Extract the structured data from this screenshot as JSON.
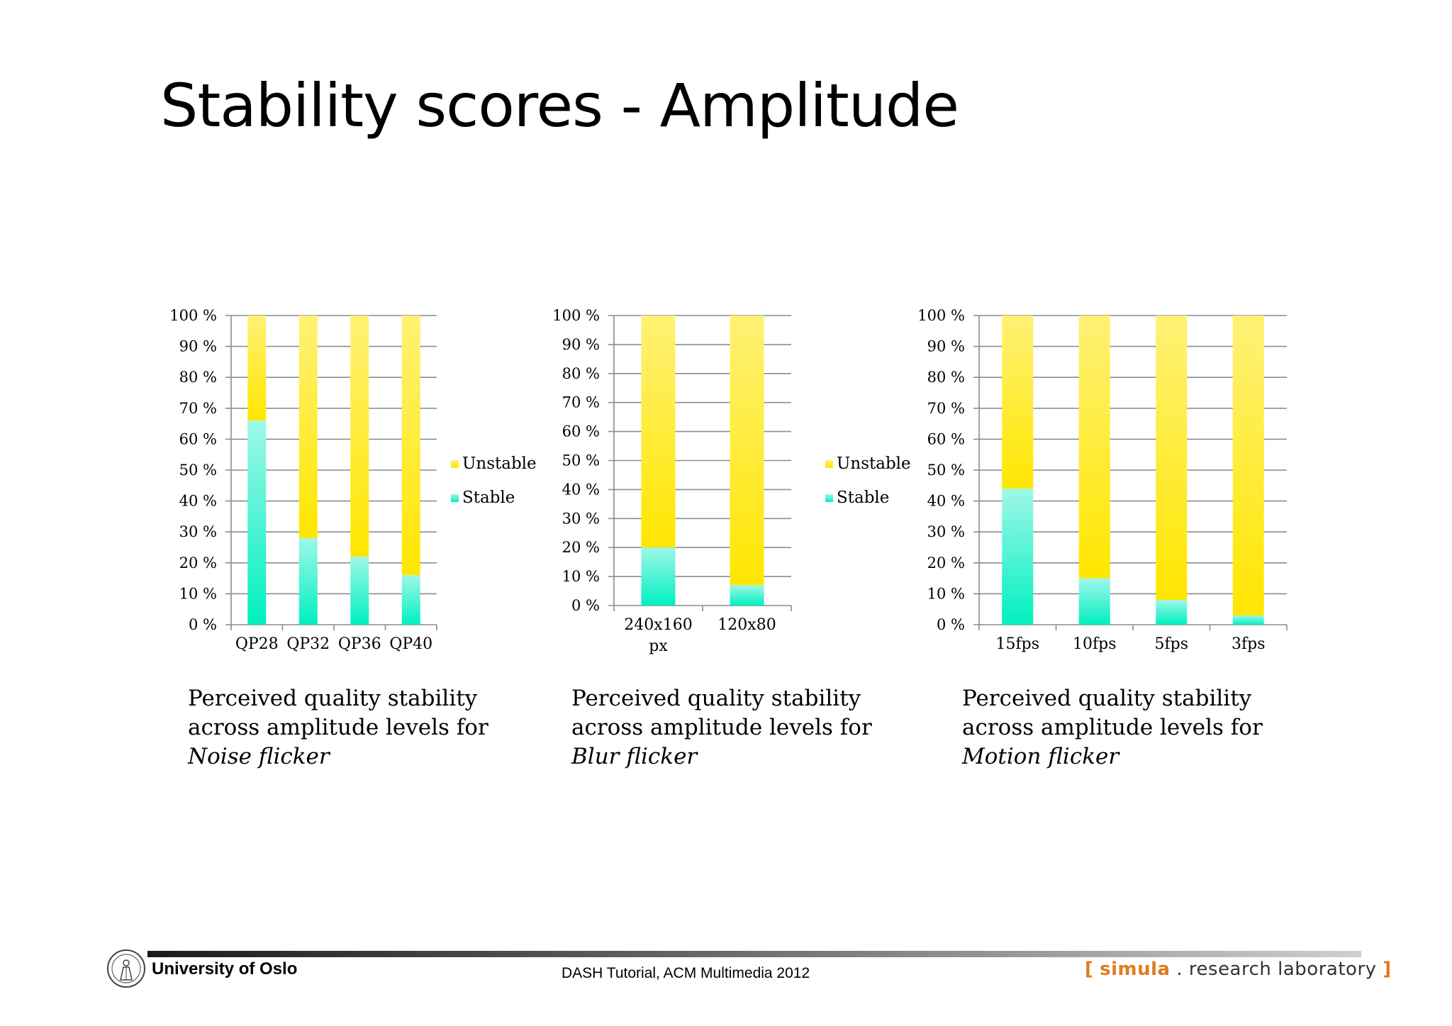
{
  "slide": {
    "title": "Stability scores - Amplitude"
  },
  "colors": {
    "unstable_top": "#FFF176",
    "unstable_bottom": "#FFE600",
    "stable_top": "#9FF7E8",
    "stable_bottom": "#00F0C0",
    "grid": "#8c8c8c"
  },
  "chart_data": [
    {
      "type": "bar",
      "stacked": true,
      "percent": true,
      "categories": [
        "QP28",
        "QP32",
        "QP36",
        "QP40"
      ],
      "series": [
        {
          "name": "Stable",
          "values": [
            66,
            28,
            22,
            16
          ]
        },
        {
          "name": "Unstable",
          "values": [
            34,
            72,
            78,
            84
          ]
        }
      ],
      "yticks": [
        "0 %",
        "10 %",
        "20 %",
        "30 %",
        "40 %",
        "50 %",
        "60 %",
        "70 %",
        "80 %",
        "90 %",
        "100 %"
      ],
      "ylim": [
        0,
        100
      ],
      "legend": {
        "position": "right",
        "entries": [
          "Unstable",
          "Stable"
        ]
      },
      "grid": true
    },
    {
      "type": "bar",
      "stacked": true,
      "percent": true,
      "categories": [
        [
          "240x160",
          "px"
        ],
        [
          "120x80"
        ]
      ],
      "series": [
        {
          "name": "Stable",
          "values": [
            20,
            7
          ]
        },
        {
          "name": "Unstable",
          "values": [
            80,
            93
          ]
        }
      ],
      "yticks": [
        "0 %",
        "10 %",
        "20 %",
        "30 %",
        "40 %",
        "50 %",
        "60 %",
        "70 %",
        "80 %",
        "90 %",
        "100 %"
      ],
      "ylim": [
        0,
        100
      ],
      "legend": {
        "position": "right",
        "entries": [
          "Unstable",
          "Stable"
        ]
      },
      "grid": true
    },
    {
      "type": "bar",
      "stacked": true,
      "percent": true,
      "categories": [
        "15fps",
        "10fps",
        "5fps",
        "3fps"
      ],
      "series": [
        {
          "name": "Stable",
          "values": [
            44,
            15,
            8,
            3
          ]
        },
        {
          "name": "Unstable",
          "values": [
            56,
            85,
            92,
            97
          ]
        }
      ],
      "yticks": [
        "0 %",
        "10 %",
        "20 %",
        "30 %",
        "40 %",
        "50 %",
        "60 %",
        "70 %",
        "80 %",
        "90 %",
        "100 %"
      ],
      "ylim": [
        0,
        100
      ],
      "legend": {
        "position": "none",
        "entries": []
      },
      "grid": true
    }
  ],
  "captions": [
    {
      "line1": "Perceived quality stability",
      "line2": "across amplitude levels for",
      "line3": "Noise flicker"
    },
    {
      "line1": "Perceived quality stability",
      "line2": "across amplitude levels for",
      "line3": "Blur flicker"
    },
    {
      "line1": "Perceived quality stability",
      "line2": "across amplitude levels for",
      "line3": "Motion flicker"
    }
  ],
  "footer": {
    "university": "University of Oslo",
    "center": "DASH Tutorial, ACM Multimedia 2012",
    "lab_open": "[",
    "lab_brand": "simula",
    "lab_rest": ". research laboratory",
    "lab_close": "]",
    "seal_icon": "university-seal-icon"
  }
}
